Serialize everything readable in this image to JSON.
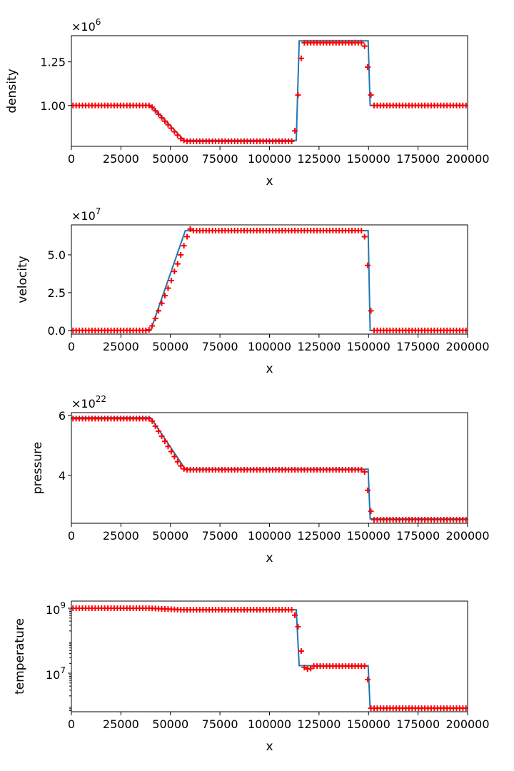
{
  "chart_data": [
    {
      "type": "line",
      "xlabel": "x",
      "ylabel": "density",
      "offset_text": {
        "prefix": "×10",
        "exp": "6"
      },
      "scale": 1000000.0,
      "xlim": [
        0,
        200000
      ],
      "ylim": [
        0.766,
        1.4
      ],
      "xticks": [
        "0",
        "25000",
        "50000",
        "75000",
        "100000",
        "125000",
        "150000",
        "175000",
        "200000"
      ],
      "yticks": [
        {
          "value": 1.0,
          "label": "1.00"
        },
        {
          "value": 1.25,
          "label": "1.25"
        }
      ],
      "line": {
        "color": "#1f77b4",
        "points": [
          [
            0,
            1.0
          ],
          [
            40000,
            1.0
          ],
          [
            57000,
            0.8
          ],
          [
            113500,
            0.8
          ],
          [
            115000,
            1.37
          ],
          [
            149800,
            1.37
          ],
          [
            150800,
            1.0
          ],
          [
            200000,
            1.0
          ]
        ]
      },
      "markers": {
        "color": "#ff0000",
        "symbol": "+",
        "values": [
          1,
          1,
          1,
          1,
          1,
          1,
          1,
          1,
          1,
          1,
          1,
          1,
          1,
          1,
          1,
          1,
          1,
          1,
          1,
          1,
          1,
          1,
          1,
          1,
          1,
          0.99,
          0.97,
          0.95,
          0.93,
          0.91,
          0.89,
          0.87,
          0.85,
          0.83,
          0.81,
          0.8,
          0.795,
          0.795,
          0.795,
          0.795,
          0.795,
          0.795,
          0.795,
          0.795,
          0.795,
          0.795,
          0.795,
          0.795,
          0.795,
          0.795,
          0.795,
          0.795,
          0.795,
          0.795,
          0.795,
          0.795,
          0.795,
          0.795,
          0.795,
          0.795,
          0.795,
          0.795,
          0.795,
          0.795,
          0.795,
          0.795,
          0.795,
          0.795,
          0.795,
          0.795,
          0.855,
          1.06,
          1.27,
          1.36,
          1.36,
          1.36,
          1.36,
          1.36,
          1.36,
          1.36,
          1.36,
          1.36,
          1.36,
          1.36,
          1.36,
          1.36,
          1.36,
          1.36,
          1.36,
          1.36,
          1.36,
          1.36,
          1.34,
          1.22,
          1.06,
          1,
          1,
          1,
          1,
          1,
          1,
          1,
          1,
          1,
          1,
          1,
          1,
          1,
          1,
          1,
          1,
          1,
          1,
          1,
          1,
          1,
          1,
          1,
          1,
          1,
          1,
          1,
          1,
          1,
          1
        ]
      },
      "log": false
    },
    {
      "type": "line",
      "xlabel": "x",
      "ylabel": "velocity",
      "offset_text": {
        "prefix": "×10",
        "exp": "7"
      },
      "scale": 10000000.0,
      "xlim": [
        0,
        200000
      ],
      "ylim": [
        -0.24,
        6.98
      ],
      "xticks": [
        "0",
        "25000",
        "50000",
        "75000",
        "100000",
        "125000",
        "150000",
        "175000",
        "200000"
      ],
      "yticks": [
        {
          "value": 0,
          "label": "0.0"
        },
        {
          "value": 2.5,
          "label": "2.5"
        },
        {
          "value": 5.0,
          "label": "5.0"
        }
      ],
      "line": {
        "color": "#1f77b4",
        "points": [
          [
            0,
            0
          ],
          [
            40000,
            0
          ],
          [
            57500,
            6.6
          ],
          [
            149800,
            6.6
          ],
          [
            150800,
            0
          ],
          [
            200000,
            0
          ]
        ]
      },
      "markers": {
        "color": "#ff0000",
        "symbol": "+",
        "values": [
          0,
          0,
          0,
          0,
          0,
          0,
          0,
          0,
          0,
          0,
          0,
          0,
          0,
          0,
          0,
          0,
          0,
          0,
          0,
          0,
          0,
          0,
          0,
          0,
          0.05,
          0.3,
          0.8,
          1.3,
          1.8,
          2.3,
          2.8,
          3.3,
          3.9,
          4.4,
          5.0,
          5.6,
          6.2,
          6.7,
          6.6,
          6.6,
          6.6,
          6.6,
          6.6,
          6.6,
          6.6,
          6.6,
          6.6,
          6.6,
          6.6,
          6.6,
          6.6,
          6.6,
          6.6,
          6.6,
          6.6,
          6.6,
          6.6,
          6.6,
          6.6,
          6.6,
          6.6,
          6.6,
          6.6,
          6.6,
          6.6,
          6.6,
          6.6,
          6.6,
          6.6,
          6.6,
          6.6,
          6.6,
          6.6,
          6.6,
          6.6,
          6.6,
          6.6,
          6.6,
          6.6,
          6.6,
          6.6,
          6.6,
          6.6,
          6.6,
          6.6,
          6.6,
          6.6,
          6.6,
          6.6,
          6.6,
          6.6,
          6.6,
          6.2,
          4.3,
          1.3,
          0,
          0,
          0,
          0,
          0,
          0,
          0,
          0,
          0,
          0,
          0,
          0,
          0,
          0,
          0,
          0,
          0,
          0,
          0,
          0,
          0,
          0,
          0,
          0,
          0,
          0,
          0,
          0,
          0,
          0
        ]
      },
      "log": false
    },
    {
      "type": "line",
      "xlabel": "x",
      "ylabel": "pressure",
      "offset_text": {
        "prefix": "×10",
        "exp": "22"
      },
      "scale": 1e+22,
      "xlim": [
        0,
        200000
      ],
      "ylim": [
        2.4,
        6.1
      ],
      "xticks": [
        "0",
        "25000",
        "50000",
        "75000",
        "100000",
        "125000",
        "150000",
        "175000",
        "200000"
      ],
      "yticks": [
        {
          "value": 4,
          "label": "4"
        },
        {
          "value": 6,
          "label": "6"
        }
      ],
      "line": {
        "color": "#1f77b4",
        "points": [
          [
            0,
            5.93
          ],
          [
            40000,
            5.93
          ],
          [
            57500,
            4.21
          ],
          [
            149800,
            4.21
          ],
          [
            150800,
            2.55
          ],
          [
            200000,
            2.55
          ]
        ]
      },
      "markers": {
        "color": "#ff0000",
        "symbol": "+",
        "values": [
          5.9,
          5.9,
          5.9,
          5.9,
          5.9,
          5.9,
          5.9,
          5.9,
          5.9,
          5.9,
          5.9,
          5.9,
          5.9,
          5.9,
          5.9,
          5.9,
          5.9,
          5.9,
          5.9,
          5.9,
          5.9,
          5.9,
          5.9,
          5.9,
          5.9,
          5.82,
          5.65,
          5.48,
          5.31,
          5.14,
          4.97,
          4.8,
          4.63,
          4.46,
          4.32,
          4.22,
          4.19,
          4.19,
          4.19,
          4.19,
          4.19,
          4.19,
          4.19,
          4.19,
          4.19,
          4.19,
          4.19,
          4.19,
          4.19,
          4.19,
          4.19,
          4.19,
          4.19,
          4.19,
          4.19,
          4.19,
          4.19,
          4.19,
          4.19,
          4.19,
          4.19,
          4.19,
          4.19,
          4.19,
          4.19,
          4.19,
          4.19,
          4.19,
          4.19,
          4.19,
          4.19,
          4.19,
          4.19,
          4.19,
          4.19,
          4.19,
          4.19,
          4.19,
          4.19,
          4.19,
          4.19,
          4.19,
          4.19,
          4.19,
          4.19,
          4.19,
          4.19,
          4.19,
          4.19,
          4.19,
          4.19,
          4.19,
          4.12,
          3.5,
          2.8,
          2.52,
          2.52,
          2.52,
          2.52,
          2.52,
          2.52,
          2.52,
          2.52,
          2.52,
          2.52,
          2.52,
          2.52,
          2.52,
          2.52,
          2.52,
          2.52,
          2.52,
          2.52,
          2.52,
          2.52,
          2.52,
          2.52,
          2.52,
          2.52,
          2.52,
          2.52,
          2.52,
          2.52,
          2.52,
          2.52
        ]
      },
      "log": false
    },
    {
      "type": "line",
      "xlabel": "x",
      "ylabel": "temperature",
      "offset_text": null,
      "scale": 1,
      "xlim": [
        0,
        200000
      ],
      "ylim": [
        650000.0,
        1660000000.0
      ],
      "xticks": [
        "0",
        "25000",
        "50000",
        "75000",
        "100000",
        "125000",
        "150000",
        "175000",
        "200000"
      ],
      "yticks": [
        {
          "value": 10000000.0,
          "label": "10",
          "exp": "7"
        },
        {
          "value": 1000000000.0,
          "label": "10",
          "exp": "9"
        }
      ],
      "line": {
        "color": "#1f77b4",
        "points": [
          [
            0,
            1000000000.0
          ],
          [
            40000,
            1000000000.0
          ],
          [
            57000,
            900000000.0
          ],
          [
            113500,
            900000000.0
          ],
          [
            115000,
            17000000.0
          ],
          [
            149800,
            17000000.0
          ],
          [
            150800,
            850000.0
          ],
          [
            200000,
            850000.0
          ]
        ]
      },
      "markers": {
        "color": "#ff0000",
        "symbol": "+",
        "values": [
          1000000000.0,
          1000000000.0,
          1000000000.0,
          1000000000.0,
          1000000000.0,
          1000000000.0,
          1000000000.0,
          1000000000.0,
          1000000000.0,
          1000000000.0,
          1000000000.0,
          1000000000.0,
          1000000000.0,
          1000000000.0,
          1000000000.0,
          1000000000.0,
          1000000000.0,
          1000000000.0,
          1000000000.0,
          1000000000.0,
          1000000000.0,
          1000000000.0,
          1000000000.0,
          1000000000.0,
          1000000000.0,
          990000000.0,
          980000000.0,
          970000000.0,
          960000000.0,
          950000000.0,
          940000000.0,
          930000000.0,
          920000000.0,
          910000000.0,
          900000000.0,
          900000000.0,
          900000000.0,
          900000000.0,
          900000000.0,
          900000000.0,
          900000000.0,
          900000000.0,
          900000000.0,
          900000000.0,
          900000000.0,
          900000000.0,
          900000000.0,
          900000000.0,
          900000000.0,
          900000000.0,
          900000000.0,
          900000000.0,
          900000000.0,
          900000000.0,
          900000000.0,
          900000000.0,
          900000000.0,
          900000000.0,
          900000000.0,
          900000000.0,
          900000000.0,
          900000000.0,
          900000000.0,
          900000000.0,
          900000000.0,
          900000000.0,
          900000000.0,
          900000000.0,
          900000000.0,
          900000000.0,
          610000000.0,
          270000000.0,
          48000000.0,
          15000000.0,
          13500000.0,
          14000000.0,
          16500000.0,
          16500000.0,
          16500000.0,
          16500000.0,
          16500000.0,
          16500000.0,
          16500000.0,
          16500000.0,
          16500000.0,
          16500000.0,
          16500000.0,
          16500000.0,
          16500000.0,
          16500000.0,
          16500000.0,
          16500000.0,
          16500000.0,
          6400000.0,
          830000.0,
          830000.0,
          830000.0,
          830000.0,
          830000.0,
          830000.0,
          830000.0,
          830000.0,
          830000.0,
          830000.0,
          830000.0,
          830000.0,
          830000.0,
          830000.0,
          830000.0,
          830000.0,
          830000.0,
          830000.0,
          830000.0,
          830000.0,
          830000.0,
          830000.0,
          830000.0,
          830000.0,
          830000.0,
          830000.0,
          830000.0,
          830000.0,
          830000.0,
          830000.0,
          830000.0
        ]
      },
      "log": true
    }
  ],
  "marker_x": [
    800,
    2400,
    4000,
    5600,
    7200,
    8800,
    10400,
    12000,
    13600,
    15200,
    16800,
    18400,
    20000,
    21600,
    23200,
    24800,
    26400,
    28000,
    29600,
    31200,
    32800,
    34400,
    36000,
    37600,
    39200,
    40800,
    42400,
    44000,
    45600,
    47200,
    48800,
    50400,
    52000,
    53600,
    55200,
    56800,
    58400,
    60000,
    61600,
    63200,
    64800,
    66400,
    68000,
    69600,
    71200,
    72800,
    74400,
    76000,
    77600,
    79200,
    80800,
    82400,
    84000,
    85600,
    87200,
    88800,
    90400,
    92000,
    93600,
    95200,
    96800,
    98400,
    100000,
    101600,
    103200,
    104800,
    106400,
    108000,
    109600,
    111200,
    112800,
    114400,
    116000,
    117600,
    119200,
    120800,
    122400,
    124000,
    125600,
    127200,
    128800,
    130400,
    132000,
    133600,
    135200,
    136800,
    138400,
    140000,
    141600,
    143200,
    144800,
    146400,
    148000,
    149600,
    151200,
    152800,
    154400,
    156000,
    157600,
    159200,
    160800,
    162400,
    164000,
    165600,
    167200,
    168800,
    170400,
    172000,
    173600,
    175200,
    176800,
    178400,
    180000,
    181600,
    183200,
    184800,
    186400,
    188000,
    189600,
    191200,
    192800,
    194400,
    196000,
    197600,
    199200
  ]
}
